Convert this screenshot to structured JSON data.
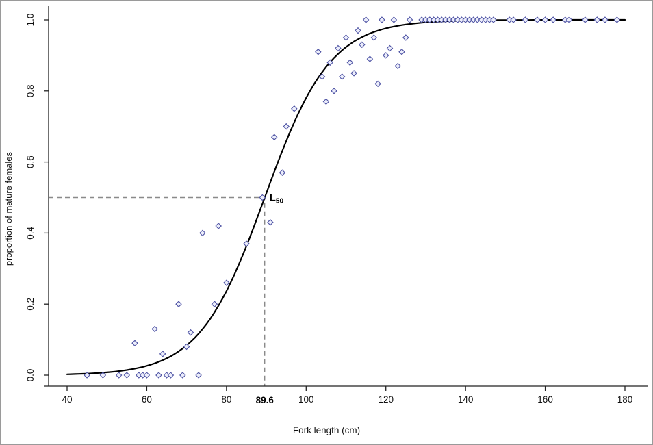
{
  "page": {
    "background": "#ffffff"
  },
  "chart_data": {
    "type": "scatter",
    "title": "",
    "xlabel": "Fork length (cm)",
    "ylabel": "proportion of mature females",
    "xlim": [
      40,
      180
    ],
    "ylim": [
      0,
      1
    ],
    "x_ticks": [
      40,
      60,
      80,
      100,
      120,
      140,
      160,
      180
    ],
    "y_ticks": [
      0,
      0.2,
      0.4,
      0.6,
      0.8,
      1
    ],
    "grid": false,
    "legend": false,
    "point_style": {
      "shape": "diamond",
      "stroke": "#4d52a3",
      "fill": "#eceefb"
    },
    "curve": {
      "kind": "logistic",
      "l50": 89.6,
      "slope": 8.2,
      "color": "#000000",
      "width": 2.2
    },
    "annotations": {
      "l50_label_main": "L",
      "l50_label_sub": "50",
      "l50_value_label": "89.6",
      "ref_proportion": 0.5,
      "dash_color": "#8a8a8a"
    },
    "points": [
      [
        45,
        0
      ],
      [
        49,
        0
      ],
      [
        53,
        0
      ],
      [
        55,
        0
      ],
      [
        57,
        0.09
      ],
      [
        58,
        0
      ],
      [
        59,
        0
      ],
      [
        60,
        0
      ],
      [
        62,
        0.13
      ],
      [
        63,
        0
      ],
      [
        64,
        0.06
      ],
      [
        65,
        0
      ],
      [
        66,
        0
      ],
      [
        68,
        0.2
      ],
      [
        69,
        0
      ],
      [
        70,
        0.08
      ],
      [
        71,
        0.12
      ],
      [
        73,
        0
      ],
      [
        74,
        0.4
      ],
      [
        77,
        0.2
      ],
      [
        78,
        0.42
      ],
      [
        80,
        0.26
      ],
      [
        85,
        0.37
      ],
      [
        89,
        0.5
      ],
      [
        91,
        0.43
      ],
      [
        92,
        0.67
      ],
      [
        94,
        0.57
      ],
      [
        95,
        0.7
      ],
      [
        97,
        0.75
      ],
      [
        103,
        0.91
      ],
      [
        104,
        0.84
      ],
      [
        105,
        0.77
      ],
      [
        106,
        0.88
      ],
      [
        107,
        0.8
      ],
      [
        108,
        0.92
      ],
      [
        109,
        0.84
      ],
      [
        110,
        0.95
      ],
      [
        111,
        0.88
      ],
      [
        112,
        0.85
      ],
      [
        113,
        0.97
      ],
      [
        114,
        0.93
      ],
      [
        115,
        1
      ],
      [
        116,
        0.89
      ],
      [
        117,
        0.95
      ],
      [
        118,
        0.82
      ],
      [
        119,
        1
      ],
      [
        120,
        0.9
      ],
      [
        121,
        0.92
      ],
      [
        122,
        1
      ],
      [
        123,
        0.87
      ],
      [
        124,
        0.91
      ],
      [
        125,
        0.95
      ],
      [
        126,
        1
      ],
      [
        129,
        1
      ],
      [
        130,
        1
      ],
      [
        131,
        1
      ],
      [
        132,
        1
      ],
      [
        133,
        1
      ],
      [
        134,
        1
      ],
      [
        135,
        1
      ],
      [
        136,
        1
      ],
      [
        137,
        1
      ],
      [
        138,
        1
      ],
      [
        139,
        1
      ],
      [
        140,
        1
      ],
      [
        141,
        1
      ],
      [
        142,
        1
      ],
      [
        143,
        1
      ],
      [
        144,
        1
      ],
      [
        145,
        1
      ],
      [
        146,
        1
      ],
      [
        147,
        1
      ],
      [
        151,
        1
      ],
      [
        152,
        1
      ],
      [
        155,
        1
      ],
      [
        158,
        1
      ],
      [
        160,
        1
      ],
      [
        162,
        1
      ],
      [
        165,
        1
      ],
      [
        166,
        1
      ],
      [
        170,
        1
      ],
      [
        173,
        1
      ],
      [
        175,
        1
      ],
      [
        178,
        1
      ]
    ]
  }
}
